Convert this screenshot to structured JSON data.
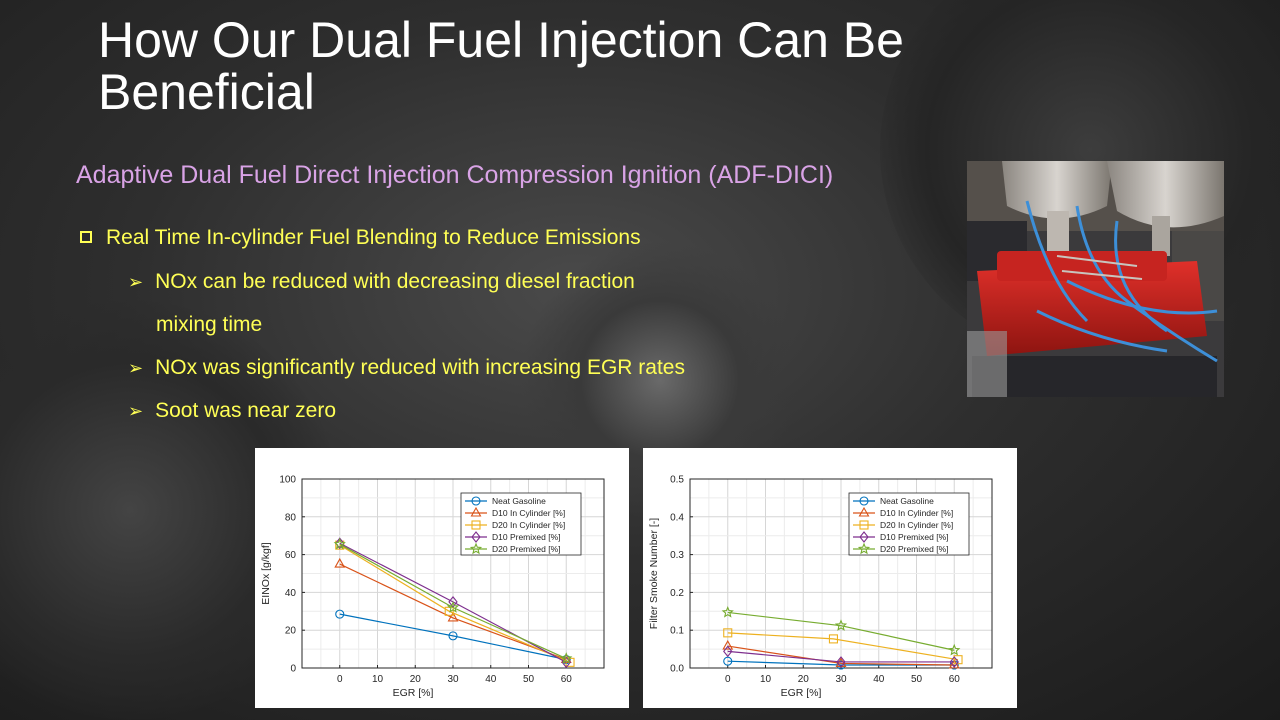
{
  "slide": {
    "title": "How Our Dual Fuel Injection Can Be Beneficial",
    "subtitle": "Adaptive Dual Fuel Direct Injection Compression Ignition (ADF-DICI)",
    "bullets": {
      "main": "Real Time In-cylinder Fuel Blending to Reduce Emissions",
      "sub1_line1": "NOx can be reduced with decreasing diesel fraction",
      "sub1_line2": "mixing time",
      "sub2": "NOx was significantly reduced with increasing EGR rates",
      "sub3": "Soot was near zero"
    },
    "colors": {
      "title": "#ffffff",
      "subtitle": "#d9a3e6",
      "bullets": "#ffff55"
    },
    "icons": {
      "main_bullet": "hollow-square-icon",
      "sub_bullet": "arrowhead-icon"
    }
  },
  "chart_data": [
    {
      "type": "line",
      "xlabel": "EGR [%]",
      "ylabel": "EINOx [g/kgf]",
      "xlim": [
        -10,
        70
      ],
      "ylim": [
        0,
        100
      ],
      "xticks": [
        0,
        10,
        20,
        30,
        40,
        50,
        60
      ],
      "yticks": [
        0,
        20,
        40,
        60,
        80,
        100
      ],
      "grid": true,
      "legend_position": "top-right",
      "series": [
        {
          "name": "Neat Gasoline",
          "color": "#0072bd",
          "marker": "circle",
          "x": [
            0,
            30,
            60
          ],
          "y": [
            28.5,
            17,
            4.5
          ]
        },
        {
          "name": "D10 In Cylinder [%]",
          "color": "#d95319",
          "marker": "triangle",
          "x": [
            0,
            30,
            60
          ],
          "y": [
            55,
            26.5,
            4.5
          ]
        },
        {
          "name": "D20 In Cylinder [%]",
          "color": "#edb120",
          "marker": "square",
          "x": [
            0,
            29,
            61
          ],
          "y": [
            65,
            30,
            3
          ]
        },
        {
          "name": "D10 Premixed [%]",
          "color": "#7e2f8e",
          "marker": "diamond",
          "x": [
            0,
            30,
            60
          ],
          "y": [
            66,
            35,
            3
          ]
        },
        {
          "name": "D20 Premixed [%]",
          "color": "#77ac30",
          "marker": "star",
          "x": [
            0,
            30,
            60
          ],
          "y": [
            65.5,
            32,
            5
          ]
        }
      ]
    },
    {
      "type": "line",
      "xlabel": "EGR [%]",
      "ylabel": "Filter Smoke Number [-]",
      "xlim": [
        -10,
        70
      ],
      "ylim": [
        0,
        0.5
      ],
      "xticks": [
        0,
        10,
        20,
        30,
        40,
        50,
        60
      ],
      "yticks": [
        0,
        0.1,
        0.2,
        0.3,
        0.4,
        0.5
      ],
      "grid": true,
      "legend_position": "top-right",
      "series": [
        {
          "name": "Neat Gasoline",
          "color": "#0072bd",
          "marker": "circle",
          "x": [
            0,
            30,
            60
          ],
          "y": [
            0.018,
            0.008,
            0.008
          ]
        },
        {
          "name": "D10 In Cylinder [%]",
          "color": "#d95319",
          "marker": "triangle",
          "x": [
            0,
            30,
            60
          ],
          "y": [
            0.058,
            0.012,
            0.008
          ]
        },
        {
          "name": "D20 In Cylinder [%]",
          "color": "#edb120",
          "marker": "square",
          "x": [
            0,
            28,
            61
          ],
          "y": [
            0.093,
            0.077,
            0.022
          ]
        },
        {
          "name": "D10 Premixed [%]",
          "color": "#7e2f8e",
          "marker": "diamond",
          "x": [
            0,
            30,
            60
          ],
          "y": [
            0.044,
            0.016,
            0.016
          ]
        },
        {
          "name": "D20 Premixed [%]",
          "color": "#77ac30",
          "marker": "star",
          "x": [
            0,
            30,
            60
          ],
          "y": [
            0.147,
            0.112,
            0.047
          ]
        }
      ]
    }
  ]
}
